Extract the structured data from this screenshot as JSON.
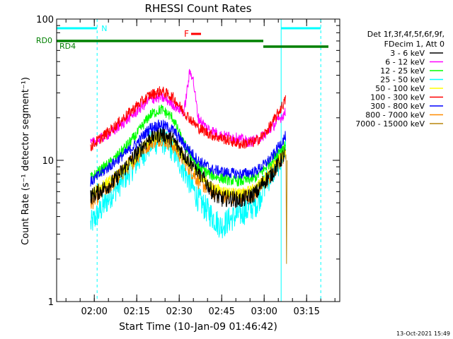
{
  "chart_data": {
    "type": "line",
    "title": "RHESSI Count Rates",
    "xlabel": "Start Time (10-Jan-09 01:46:42)",
    "ylabel": "Count Rate (s⁻¹ detector segment⁻¹)",
    "yscale": "log",
    "ylim": [
      1,
      100
    ],
    "xlim_minutes": [
      0,
      100
    ],
    "y_tick_labels": [
      "1",
      "10",
      "100"
    ],
    "x_ticks": [
      {
        "label": "02:00",
        "t": 13.3
      },
      {
        "label": "02:15",
        "t": 28.3
      },
      {
        "label": "02:30",
        "t": 43.3
      },
      {
        "label": "02:45",
        "t": 58.3
      },
      {
        "label": "03:00",
        "t": 73.3
      },
      {
        "label": "03:15",
        "t": 88.3
      }
    ],
    "legend_header": [
      "Det 1f,3f,4f,5f,6f,9f,",
      "FDecim 1, Att 0"
    ],
    "series": [
      {
        "name": "3 - 6 keV",
        "color": "#000000",
        "points": [
          [
            12,
            5.5
          ],
          [
            20,
            7
          ],
          [
            28,
            11
          ],
          [
            33,
            14.5
          ],
          [
            37,
            15.5
          ],
          [
            41,
            14
          ],
          [
            45,
            11
          ],
          [
            50,
            8.5
          ],
          [
            55,
            6
          ],
          [
            58,
            5.3
          ],
          [
            61,
            5.4
          ],
          [
            65,
            5.2
          ],
          [
            68,
            5.5
          ],
          [
            71,
            6
          ],
          [
            73,
            7
          ],
          [
            76,
            8
          ],
          [
            79,
            10
          ],
          [
            81,
            11.5
          ]
        ]
      },
      {
        "name": "6 - 12 keV",
        "color": "#ff00ff",
        "points": [
          [
            12,
            13
          ],
          [
            20,
            16
          ],
          [
            28,
            22
          ],
          [
            33,
            27
          ],
          [
            37,
            28
          ],
          [
            40,
            26
          ],
          [
            42,
            24
          ],
          [
            45,
            22
          ],
          [
            47,
            42
          ],
          [
            48,
            40
          ],
          [
            50,
            20
          ],
          [
            53,
            17
          ],
          [
            58,
            15
          ],
          [
            63,
            14.5
          ],
          [
            68,
            13.5
          ],
          [
            71,
            14
          ],
          [
            74,
            15.5
          ],
          [
            77,
            18
          ],
          [
            81,
            22
          ]
        ]
      },
      {
        "name": "12 - 25 keV",
        "color": "#00ff00",
        "points": [
          [
            12,
            7.5
          ],
          [
            20,
            10
          ],
          [
            28,
            15
          ],
          [
            33,
            21
          ],
          [
            37,
            23
          ],
          [
            41,
            20
          ],
          [
            45,
            13
          ],
          [
            50,
            9
          ],
          [
            55,
            7.8
          ],
          [
            60,
            7.3
          ],
          [
            65,
            7.1
          ],
          [
            70,
            7.5
          ],
          [
            73,
            8.5
          ],
          [
            76,
            10
          ],
          [
            79,
            12
          ],
          [
            81,
            13
          ]
        ]
      },
      {
        "name": "25 - 50 keV",
        "color": "#00ffff",
        "points": [
          [
            12,
            3.5
          ],
          [
            20,
            6
          ],
          [
            28,
            9.5
          ],
          [
            33,
            13
          ],
          [
            37,
            14
          ],
          [
            41,
            12
          ],
          [
            45,
            8.5
          ],
          [
            50,
            5.3
          ],
          [
            55,
            4
          ],
          [
            58,
            3.4
          ],
          [
            61,
            3.8
          ],
          [
            65,
            4.2
          ],
          [
            68,
            4.5
          ],
          [
            71,
            5
          ],
          [
            73,
            6.5
          ],
          [
            76,
            8
          ],
          [
            79,
            10
          ],
          [
            81,
            12
          ]
        ]
      },
      {
        "name": "50 - 100 keV",
        "color": "#ffff00",
        "points": [
          [
            12,
            5.8
          ],
          [
            20,
            7.5
          ],
          [
            28,
            10.5
          ],
          [
            33,
            14
          ],
          [
            37,
            15
          ],
          [
            41,
            13.5
          ],
          [
            45,
            10.5
          ],
          [
            50,
            8
          ],
          [
            55,
            6.4
          ],
          [
            60,
            6
          ],
          [
            65,
            5.8
          ],
          [
            70,
            6.3
          ],
          [
            73,
            7.3
          ],
          [
            76,
            8.8
          ],
          [
            79,
            10.5
          ],
          [
            81,
            12
          ]
        ]
      },
      {
        "name": "100 - 300 keV",
        "color": "#ff0000",
        "points": [
          [
            12,
            12.5
          ],
          [
            20,
            17
          ],
          [
            28,
            24
          ],
          [
            33,
            29
          ],
          [
            37,
            31
          ],
          [
            41,
            28
          ],
          [
            45,
            22
          ],
          [
            50,
            17
          ],
          [
            55,
            15
          ],
          [
            60,
            14
          ],
          [
            65,
            13
          ],
          [
            70,
            13.5
          ],
          [
            73,
            15
          ],
          [
            76,
            18
          ],
          [
            79,
            23
          ],
          [
            81,
            27
          ]
        ]
      },
      {
        "name": "300 - 800 keV",
        "color": "#0000ff",
        "points": [
          [
            12,
            7
          ],
          [
            20,
            9.5
          ],
          [
            28,
            13
          ],
          [
            33,
            17
          ],
          [
            37,
            18
          ],
          [
            41,
            16.5
          ],
          [
            45,
            13
          ],
          [
            50,
            10
          ],
          [
            55,
            8.6
          ],
          [
            60,
            8.2
          ],
          [
            65,
            8
          ],
          [
            70,
            8.3
          ],
          [
            73,
            9.2
          ],
          [
            76,
            10.5
          ],
          [
            79,
            13
          ],
          [
            81,
            15
          ]
        ]
      },
      {
        "name": "800 - 7000 keV",
        "color": "#ff8c00",
        "points": [
          [
            12,
            5
          ],
          [
            20,
            7
          ],
          [
            28,
            10.5
          ],
          [
            33,
            13.5
          ],
          [
            37,
            14.5
          ],
          [
            41,
            13
          ],
          [
            45,
            10
          ],
          [
            50,
            7.2
          ],
          [
            55,
            6
          ],
          [
            60,
            5.6
          ],
          [
            65,
            5.5
          ],
          [
            70,
            5.9
          ],
          [
            73,
            6.8
          ],
          [
            76,
            8
          ],
          [
            79,
            10
          ],
          [
            81,
            11.5
          ]
        ]
      },
      {
        "name": "7000 - 15000 keV",
        "color": "#b8860b",
        "points": [
          [
            81,
            11
          ],
          [
            81.2,
            1.85
          ],
          [
            81.4,
            10
          ]
        ]
      }
    ],
    "annotations": {
      "N": {
        "label": "N",
        "intervals": [
          [
            0,
            14.3
          ],
          [
            79.3,
            93.3
          ]
        ]
      },
      "F": {
        "label": "F"
      },
      "RD0": {
        "label": "RD0"
      },
      "RD4": {
        "label": "RD4"
      }
    },
    "grid": false,
    "legend_position": "right"
  },
  "footer_timestamp": "13-Oct-2021 15:49"
}
